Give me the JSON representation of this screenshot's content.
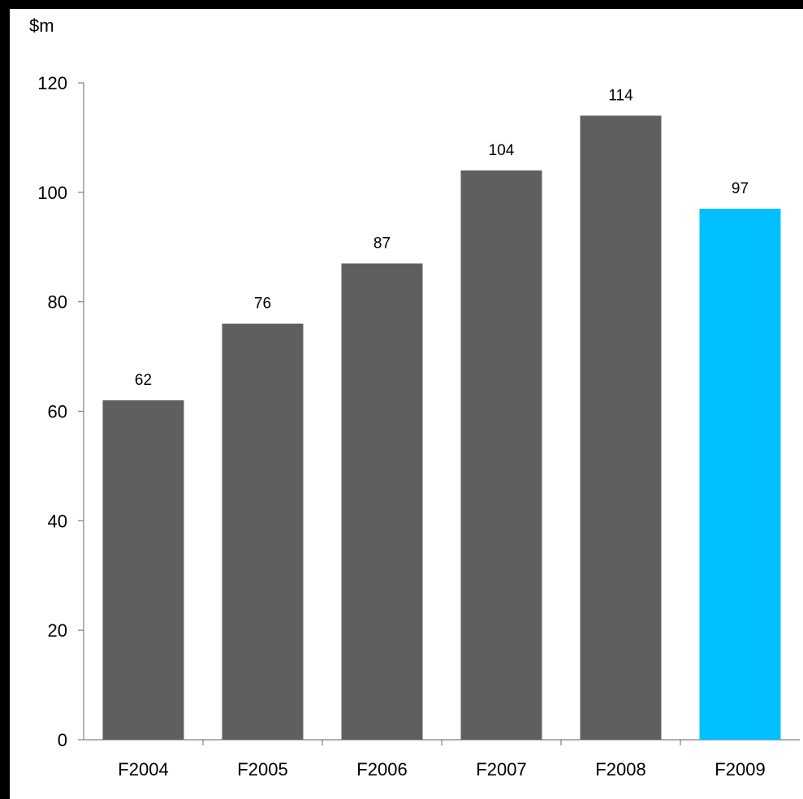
{
  "chart_data": {
    "type": "bar",
    "ylabel": "$m",
    "categories": [
      "F2004",
      "F2005",
      "F2006",
      "F2007",
      "F2008",
      "F2009"
    ],
    "values": [
      62,
      76,
      87,
      104,
      114,
      97
    ],
    "data_labels": [
      "62",
      "76",
      "87",
      "104",
      "114",
      "97"
    ],
    "ylim": [
      0,
      120
    ],
    "yticks": [
      0,
      20,
      40,
      60,
      80,
      100,
      120
    ],
    "grid": false,
    "legend": "none",
    "colors": {
      "default_bar": "#5f5f5f",
      "highlight_bar": "#00bfff",
      "axis": "#808080",
      "background": "#ffffff",
      "frame": "#000000"
    },
    "highlight_index": 5
  }
}
